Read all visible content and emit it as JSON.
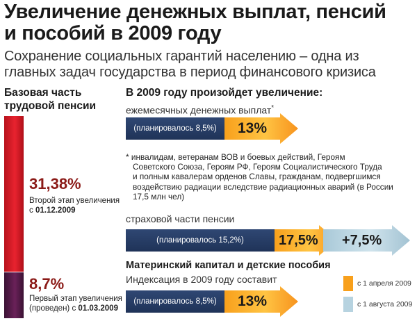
{
  "title_line1": "Увеличение денежных выплат, пенсий",
  "title_line2": "и пособий в 2009 году",
  "subtitle_line1": "Сохранение социальных гарантий населению – одна из",
  "subtitle_line2": "главных задач государства в период финансового кризиса",
  "left": {
    "heading_line1": "Базовая часть",
    "heading_line2": "трудовой пенсии",
    "stage2": {
      "percent": "31,38%",
      "line1": "Второй этап увеличения",
      "line2_prefix": "с ",
      "date": "01.12.2009"
    },
    "stage1": {
      "percent": "8,7%",
      "line1": "Первый этап увеличения",
      "line2_prefix": "(проведен) с ",
      "date": "01.03.2009"
    }
  },
  "right": {
    "heading": "В 2009 году произойдет увеличение:",
    "monthly": {
      "label": "ежемесячных денежных выплат",
      "asterisk": "*",
      "planned": "(планировалось 8,5%)",
      "value": "13%"
    },
    "footnote": {
      "line1": "* инвалидам, ветеранам ВОВ и боевых действий, Героям",
      "line2": "Советского Союза, Героям РФ, Героям Социалистического Труда",
      "line3": "и полным кавалерам орденов Славы, гражданам, подвергшимся",
      "line4": "воздействию радиации вследствие радиационных аварий (в России",
      "line5": "17,5 млн чел)"
    },
    "insurance": {
      "label": "страховой части пенсии",
      "planned": "(планировалось 15,2%)",
      "value": "17,5%",
      "extra": "+7,5%"
    },
    "maternity": {
      "heading": "Материнский капитал и детские пособия",
      "label": "Индексация в 2009 году составит",
      "planned": "(планировалось 8,5%)",
      "value": "13%"
    }
  },
  "legend": [
    {
      "label": "с 1 апреля 2009",
      "color": "#f8a01c"
    },
    {
      "label": "с 1 августа 2009",
      "color": "#b7d3e0"
    }
  ],
  "colors": {
    "red_bar": "#d61f29",
    "purple_bar": "#5a1c4d",
    "navy": "#24395f",
    "orange": "#f8a01c",
    "light_blue": "#b7d3e0",
    "percent_text": "#8b1a17"
  }
}
